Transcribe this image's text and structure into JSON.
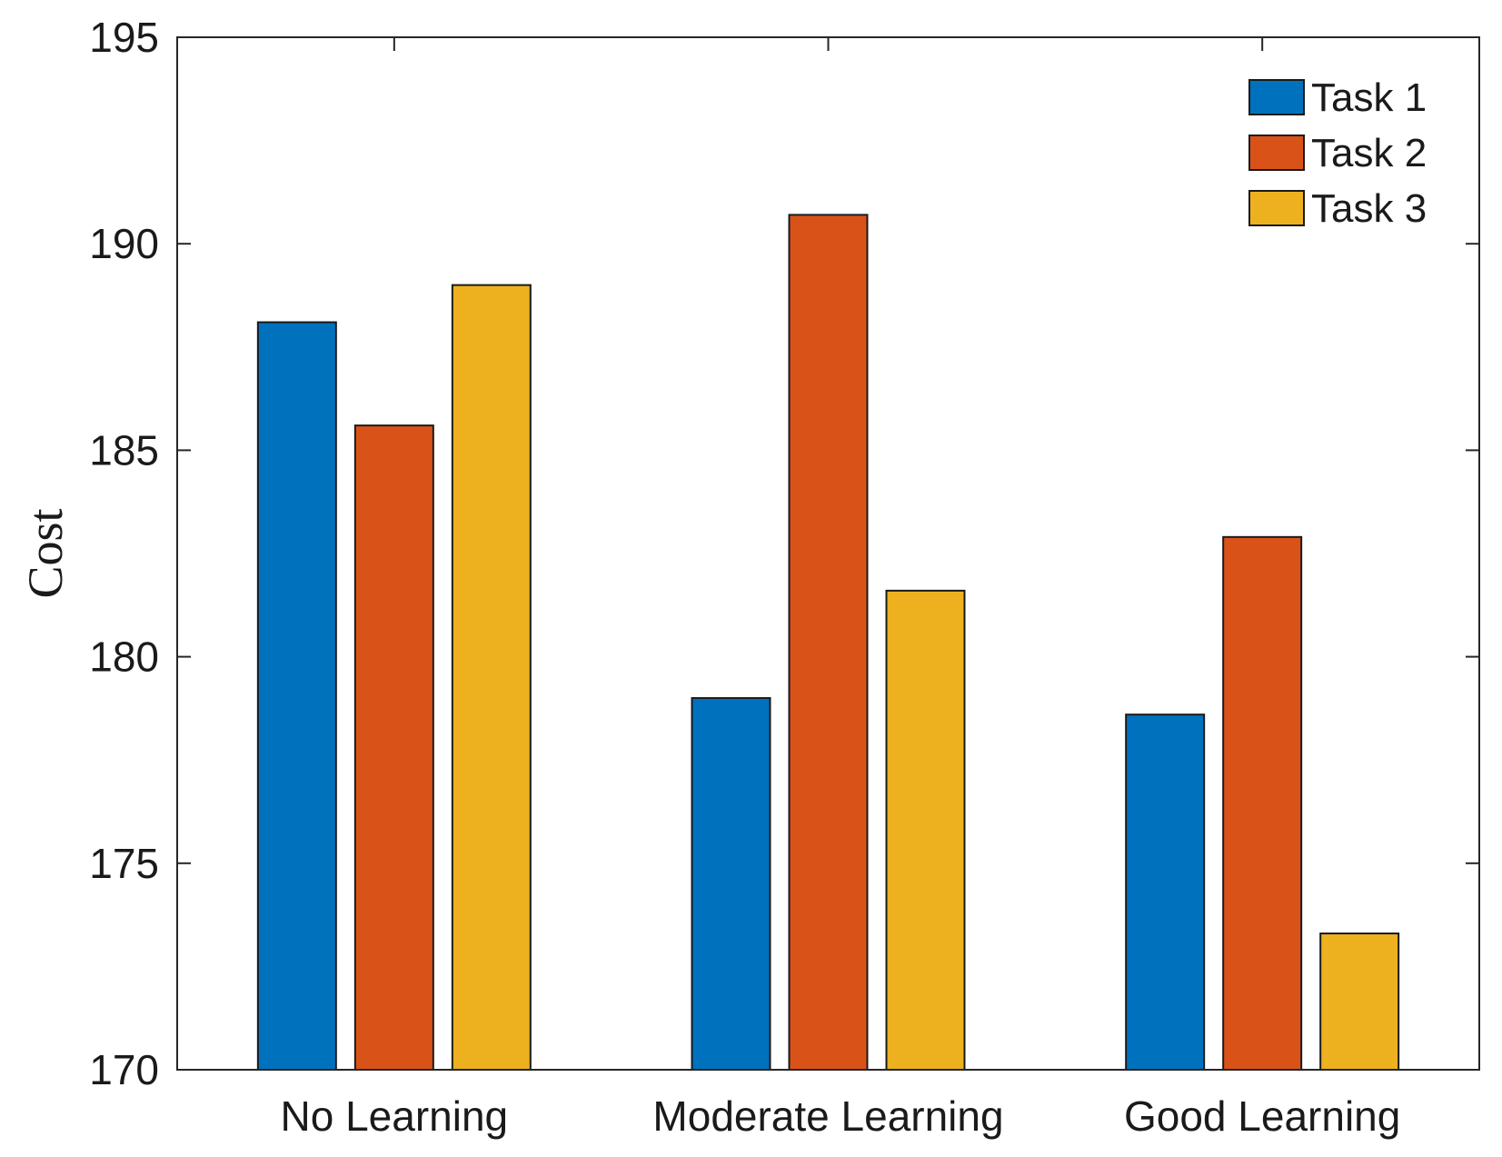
{
  "chart_data": {
    "type": "bar",
    "title": "",
    "xlabel": "",
    "ylabel": "Cost",
    "ylim": [
      170,
      195
    ],
    "yticks": [
      170,
      175,
      180,
      185,
      190,
      195
    ],
    "categories": [
      "No Learning",
      "Moderate Learning",
      "Good Learning"
    ],
    "series": [
      {
        "name": "Task 1",
        "color": "#0072BD",
        "values": [
          188.1,
          179.0,
          178.6
        ]
      },
      {
        "name": "Task 2",
        "color": "#D95319",
        "values": [
          185.6,
          190.7,
          182.9
        ]
      },
      {
        "name": "Task 3",
        "color": "#EDB120",
        "values": [
          189.0,
          181.6,
          173.3
        ]
      }
    ],
    "legend_position": "top-right",
    "grid": false
  }
}
